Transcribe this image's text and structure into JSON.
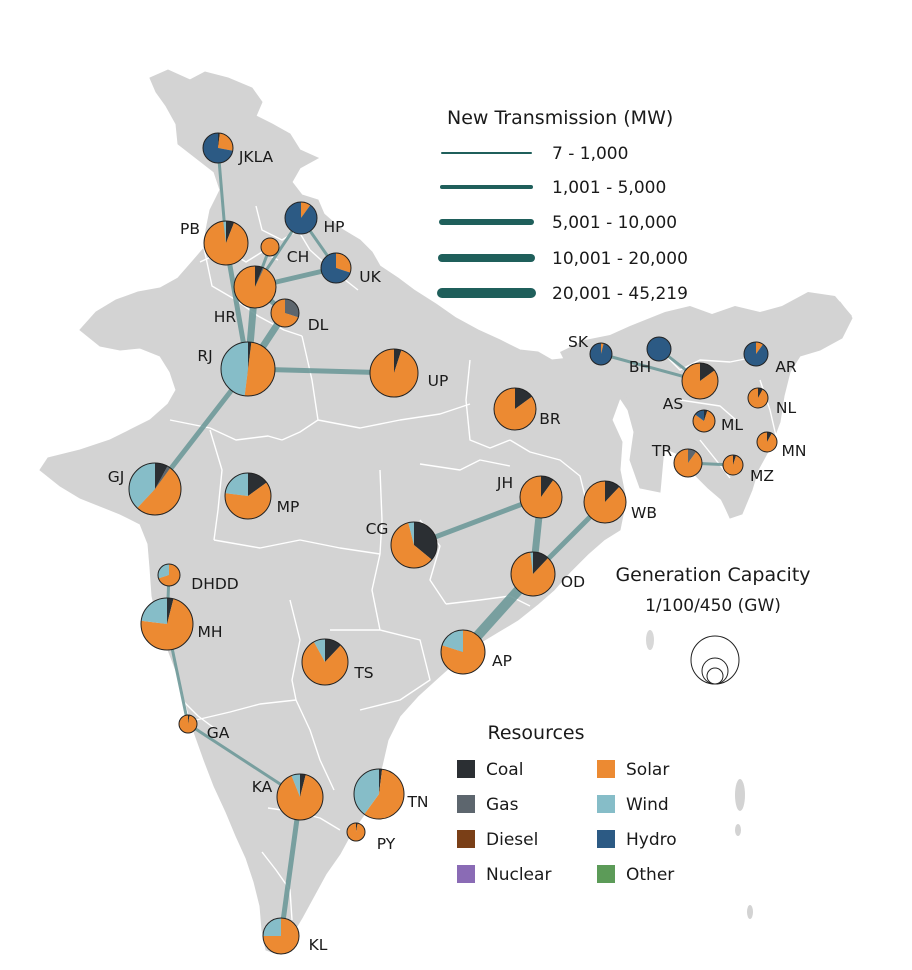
{
  "legend_transmission": {
    "title": "New Transmission (MW)",
    "classes": [
      "7 - 1,000",
      "1,001 - 5,000",
      "5,001 - 10,000",
      "10,001 - 20,000",
      "20,001 - 45,219"
    ],
    "color": "#1f5f5b"
  },
  "legend_generation": {
    "title": "Generation Capacity",
    "subtitle": "1/100/450 (GW)",
    "reference_values_gw": [
      1,
      100,
      450
    ]
  },
  "legend_resources": {
    "title": "Resources",
    "items": [
      {
        "key": "coal",
        "label": "Coal",
        "color": "#2b2f33"
      },
      {
        "key": "solar",
        "label": "Solar",
        "color": "#ec8a32"
      },
      {
        "key": "gas",
        "label": "Gas",
        "color": "#5d666e"
      },
      {
        "key": "wind",
        "label": "Wind",
        "color": "#86bdc8"
      },
      {
        "key": "diesel",
        "label": "Diesel",
        "color": "#7a3f17"
      },
      {
        "key": "hydro",
        "label": "Hydro",
        "color": "#2c5a84"
      },
      {
        "key": "nuclear",
        "label": "Nuclear",
        "color": "#8a6bb5"
      },
      {
        "key": "other",
        "label": "Other",
        "color": "#5c9b58"
      }
    ]
  },
  "colors": {
    "land": "#d3d3d3",
    "state_border": "#ffffff",
    "transmission_line": "#6f9a9a",
    "pie_outline": "#222222"
  },
  "regions": [
    {
      "id": "JKLA",
      "label": "JKLA",
      "shares": {
        "hydro": 0.72,
        "solar": 0.26,
        "coal": 0.02
      }
    },
    {
      "id": "HP",
      "label": "HP",
      "shares": {
        "hydro": 0.9,
        "solar": 0.1
      }
    },
    {
      "id": "PB",
      "label": "PB",
      "shares": {
        "solar": 0.92,
        "coal": 0.06,
        "wind": 0.02
      }
    },
    {
      "id": "CH",
      "label": "CH",
      "shares": {
        "solar": 1.0
      }
    },
    {
      "id": "UK",
      "label": "UK",
      "shares": {
        "hydro": 0.7,
        "solar": 0.3
      }
    },
    {
      "id": "HR",
      "label": "HR",
      "shares": {
        "solar": 0.93,
        "coal": 0.06,
        "gas": 0.01
      }
    },
    {
      "id": "DL",
      "label": "DL",
      "shares": {
        "solar": 0.7,
        "gas": 0.3
      }
    },
    {
      "id": "RJ",
      "label": "RJ",
      "shares": {
        "solar": 0.5,
        "wind": 0.48,
        "coal": 0.02
      }
    },
    {
      "id": "UP",
      "label": "UP",
      "shares": {
        "solar": 0.95,
        "coal": 0.05
      }
    },
    {
      "id": "BR",
      "label": "BR",
      "shares": {
        "solar": 0.85,
        "coal": 0.15
      }
    },
    {
      "id": "GJ",
      "label": "GJ",
      "shares": {
        "solar": 0.52,
        "wind": 0.38,
        "coal": 0.08,
        "gas": 0.02
      }
    },
    {
      "id": "MP",
      "label": "MP",
      "shares": {
        "solar": 0.62,
        "wind": 0.23,
        "coal": 0.15
      }
    },
    {
      "id": "CG",
      "label": "CG",
      "shares": {
        "solar": 0.6,
        "coal": 0.36,
        "wind": 0.04
      }
    },
    {
      "id": "JH",
      "label": "JH",
      "shares": {
        "solar": 0.9,
        "coal": 0.1
      }
    },
    {
      "id": "WB",
      "label": "WB",
      "shares": {
        "solar": 0.88,
        "coal": 0.12
      }
    },
    {
      "id": "OD",
      "label": "OD",
      "shares": {
        "solar": 0.86,
        "coal": 0.12,
        "wind": 0.02
      }
    },
    {
      "id": "DHDD",
      "label": "DHDD",
      "shares": {
        "solar": 0.7,
        "wind": 0.3
      }
    },
    {
      "id": "MH",
      "label": "MH",
      "shares": {
        "solar": 0.73,
        "wind": 0.23,
        "coal": 0.04
      }
    },
    {
      "id": "TS",
      "label": "TS",
      "shares": {
        "solar": 0.8,
        "wind": 0.08,
        "coal": 0.12
      }
    },
    {
      "id": "AP",
      "label": "AP",
      "shares": {
        "solar": 0.8,
        "wind": 0.2
      }
    },
    {
      "id": "GA",
      "label": "GA",
      "shares": {
        "solar": 0.97,
        "coal": 0.03
      }
    },
    {
      "id": "KA",
      "label": "KA",
      "shares": {
        "solar": 0.9,
        "wind": 0.06,
        "coal": 0.04
      }
    },
    {
      "id": "TN",
      "label": "TN",
      "shares": {
        "solar": 0.58,
        "wind": 0.4,
        "coal": 0.02
      }
    },
    {
      "id": "PY",
      "label": "PY",
      "shares": {
        "solar": 0.97,
        "coal": 0.03
      }
    },
    {
      "id": "KL",
      "label": "KL",
      "shares": {
        "solar": 0.75,
        "wind": 0.25
      }
    },
    {
      "id": "SK",
      "label": "SK",
      "shares": {
        "hydro": 0.96,
        "solar": 0.04
      }
    },
    {
      "id": "BH",
      "label": "BH",
      "shares": {
        "hydro": 1.0
      }
    },
    {
      "id": "AR",
      "label": "AR",
      "shares": {
        "hydro": 0.9,
        "solar": 0.1
      }
    },
    {
      "id": "AS",
      "label": "AS",
      "shares": {
        "solar": 0.85,
        "coal": 0.15
      }
    },
    {
      "id": "NL",
      "label": "NL",
      "shares": {
        "solar": 0.92,
        "coal": 0.08
      }
    },
    {
      "id": "ML",
      "label": "ML",
      "shares": {
        "solar": 0.8,
        "hydro": 0.15,
        "coal": 0.05
      }
    },
    {
      "id": "MN",
      "label": "MN",
      "shares": {
        "solar": 0.92,
        "coal": 0.08
      }
    },
    {
      "id": "TR",
      "label": "TR",
      "shares": {
        "solar": 0.9,
        "gas": 0.1
      }
    },
    {
      "id": "MZ",
      "label": "MZ",
      "shares": {
        "solar": 0.95,
        "coal": 0.05
      }
    }
  ],
  "transmission_links": [
    {
      "from": "JKLA",
      "to": "PB",
      "class": 1
    },
    {
      "from": "HP",
      "to": "UK",
      "class": 1
    },
    {
      "from": "HP",
      "to": "HR",
      "class": 1
    },
    {
      "from": "PB",
      "to": "RJ",
      "class": 2
    },
    {
      "from": "CH",
      "to": "HR",
      "class": 1
    },
    {
      "from": "UK",
      "to": "HR",
      "class": 2
    },
    {
      "from": "HR",
      "to": "DL",
      "class": 2
    },
    {
      "from": "HR",
      "to": "RJ",
      "class": 3
    },
    {
      "from": "DL",
      "to": "RJ",
      "class": 3
    },
    {
      "from": "RJ",
      "to": "UP",
      "class": 2
    },
    {
      "from": "RJ",
      "to": "GJ",
      "class": 2
    },
    {
      "from": "CG",
      "to": "JH",
      "class": 2
    },
    {
      "from": "JH",
      "to": "OD",
      "class": 3
    },
    {
      "from": "WB",
      "to": "OD",
      "class": 2
    },
    {
      "from": "OD",
      "to": "AP",
      "class": 5
    },
    {
      "from": "DHDD",
      "to": "MH",
      "class": 1
    },
    {
      "from": "MH",
      "to": "GA",
      "class": 1
    },
    {
      "from": "GA",
      "to": "KA",
      "class": 1
    },
    {
      "from": "KA",
      "to": "KL",
      "class": 2
    },
    {
      "from": "SK",
      "to": "AS",
      "class": 1
    },
    {
      "from": "BH",
      "to": "AS",
      "class": 1
    },
    {
      "from": "TR",
      "to": "MZ",
      "class": 1
    }
  ]
}
